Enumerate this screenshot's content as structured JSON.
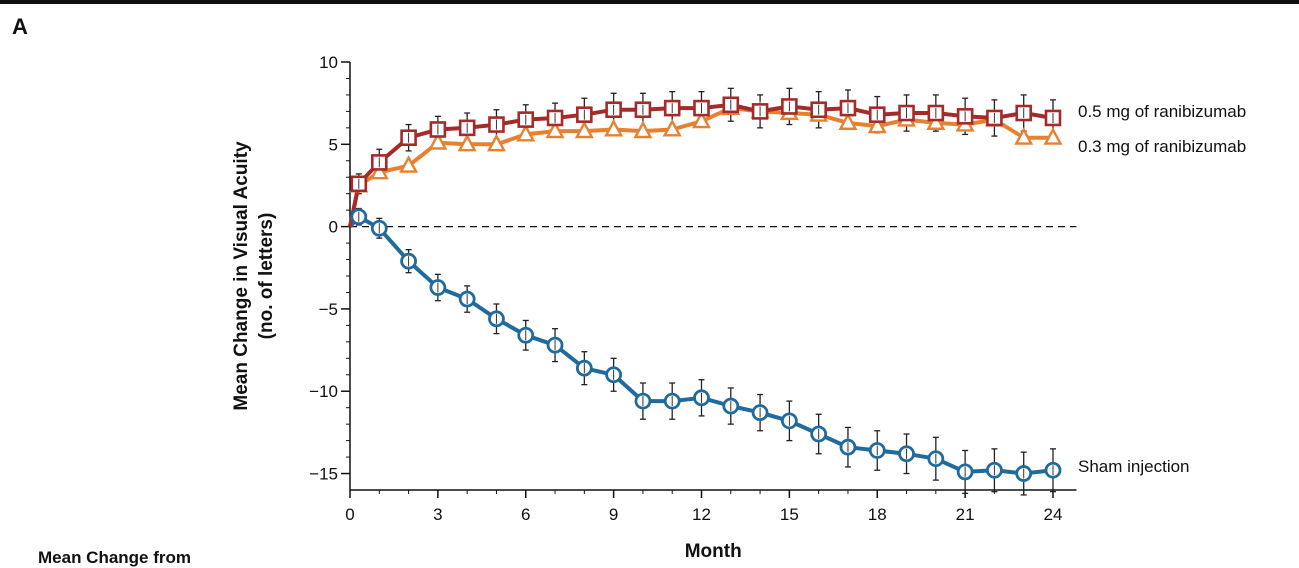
{
  "panel": {
    "letter": "A",
    "cutoff_text": "Mean Change from"
  },
  "chart_data": {
    "type": "line",
    "xlabel": "Month",
    "ylabel_lines": [
      "Mean Change in Visual Acuity",
      "(no. of letters)"
    ],
    "xlim": [
      0,
      24
    ],
    "ylim": [
      -16,
      10
    ],
    "xticks": [
      0,
      3,
      6,
      9,
      12,
      15,
      18,
      21,
      24
    ],
    "yticks": [
      10,
      5,
      0,
      -5,
      -10,
      -15
    ],
    "reference_line": {
      "y": 0,
      "style": "dashed"
    },
    "grid": false,
    "series": [
      {
        "name": "0.5 mg of ranibizumab",
        "marker": "square",
        "color": "#a52a2a",
        "x": [
          0.3,
          1,
          2,
          3,
          4,
          5,
          6,
          7,
          8,
          9,
          10,
          11,
          12,
          13,
          14,
          15,
          16,
          17,
          18,
          19,
          20,
          21,
          22,
          23,
          24
        ],
        "y": [
          2.6,
          3.9,
          5.4,
          5.9,
          6.0,
          6.2,
          6.5,
          6.6,
          6.8,
          7.1,
          7.1,
          7.2,
          7.2,
          7.4,
          7.0,
          7.3,
          7.1,
          7.2,
          6.8,
          6.9,
          6.9,
          6.7,
          6.6,
          6.9,
          6.6
        ],
        "err": [
          0.6,
          0.8,
          0.8,
          0.8,
          0.9,
          0.9,
          0.9,
          0.9,
          1.0,
          1.0,
          1.0,
          1.0,
          1.0,
          1.0,
          1.0,
          1.1,
          1.1,
          1.1,
          1.1,
          1.1,
          1.1,
          1.1,
          1.1,
          1.1,
          1.1
        ]
      },
      {
        "name": "0.3 mg of ranibizumab",
        "marker": "triangle",
        "color": "#e8812f",
        "x": [
          0.3,
          1,
          2,
          3,
          4,
          5,
          6,
          7,
          8,
          9,
          10,
          11,
          12,
          13,
          14,
          15,
          16,
          17,
          18,
          19,
          20,
          21,
          22,
          23,
          24
        ],
        "y": [
          2.5,
          3.3,
          3.7,
          5.1,
          5.0,
          5.0,
          5.6,
          5.8,
          5.8,
          5.9,
          5.8,
          5.9,
          6.4,
          7.2,
          7.0,
          6.9,
          6.8,
          6.3,
          6.1,
          6.5,
          6.3,
          6.2,
          6.5,
          5.4,
          5.4
        ]
      },
      {
        "name": "Sham injection",
        "marker": "circle",
        "color": "#1f6b9e",
        "x": [
          0.3,
          1,
          2,
          3,
          4,
          5,
          6,
          7,
          8,
          9,
          10,
          11,
          12,
          13,
          14,
          15,
          16,
          17,
          18,
          19,
          20,
          21,
          22,
          23,
          24
        ],
        "y": [
          0.6,
          -0.1,
          -2.1,
          -3.7,
          -4.4,
          -5.6,
          -6.6,
          -7.2,
          -8.6,
          -9.0,
          -10.6,
          -10.6,
          -10.4,
          -10.9,
          -11.3,
          -11.8,
          -12.6,
          -13.4,
          -13.6,
          -13.8,
          -14.1,
          -14.9,
          -14.8,
          -15.0,
          -14.8
        ],
        "err": [
          0.5,
          0.6,
          0.7,
          0.8,
          0.8,
          0.9,
          0.9,
          1.0,
          1.0,
          1.0,
          1.1,
          1.1,
          1.1,
          1.1,
          1.1,
          1.2,
          1.2,
          1.2,
          1.2,
          1.2,
          1.3,
          1.3,
          1.3,
          1.3,
          1.3
        ]
      }
    ]
  }
}
